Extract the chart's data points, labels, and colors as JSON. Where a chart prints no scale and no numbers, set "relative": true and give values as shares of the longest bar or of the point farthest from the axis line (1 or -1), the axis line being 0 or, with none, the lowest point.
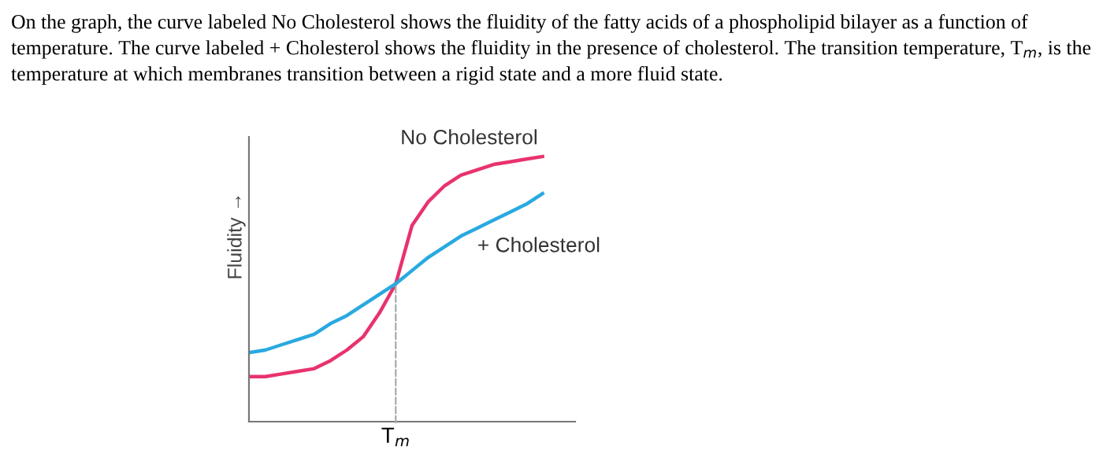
{
  "chart_data": {
    "type": "line",
    "relative": true,
    "title": "On the graph, the curve labeled No Cholesterol shows the fluidity of the fatty acids of a phospholipid bilayer as a function of temperature. The curve labeled + Cholesterol shows the fluidity in the presence of cholesterol. The transition temperature, T$_{m}$, is the temperature at which membranes transition between a rigid state and a more fluid state.",
    "ylabel": "Fluidity →",
    "categories": [
      null,
      null,
      null,
      null,
      null,
      null,
      null,
      null,
      null,
      null,
      null,
      null,
      null,
      null,
      null,
      null,
      null,
      null,
      null,
      null,
      null
    ],
    "annotations": [
      {
        "text": "T$_{m}$",
        "y": 0.52
      }
    ],
    "series": [
      {
        "name": "No Cholesterol",
        "color": "#e8336d",
        "values": [
          0.17,
          0.17,
          0.18,
          0.19,
          0.2,
          0.23,
          0.27,
          0.32,
          0.41,
          0.52,
          0.74,
          0.83,
          0.89,
          0.93,
          0.95,
          0.97,
          0.98,
          0.99,
          1.0,
          null,
          null
        ]
      },
      {
        "name": "+ Cholesterol",
        "color": "#29a9e0",
        "values": [
          0.26,
          0.27,
          0.29,
          0.31,
          0.33,
          0.37,
          0.4,
          0.44,
          0.48,
          0.52,
          0.57,
          0.62,
          0.66,
          0.7,
          0.73,
          0.76,
          0.79,
          0.82,
          0.86,
          null,
          null
        ]
      }
    ],
    "grid": false,
    "legend": false
  }
}
